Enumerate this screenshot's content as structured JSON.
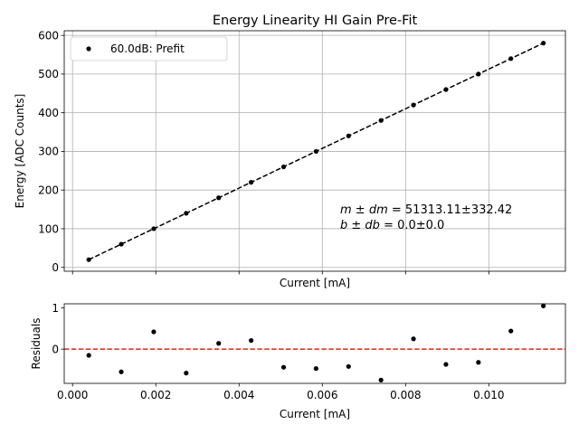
{
  "chart_data": [
    {
      "type": "scatter",
      "title": "Energy Linearity HI Gain Pre-Fit",
      "xlabel": "Current [mA]",
      "ylabel": "Energy [ADC Counts]",
      "xlim": [
        -0.0002,
        0.01184
      ],
      "ylim": [
        -10,
        612
      ],
      "yticks": [
        0,
        100,
        200,
        300,
        400,
        500,
        600
      ],
      "xticks": [
        0.0,
        0.002,
        0.004,
        0.006,
        0.008,
        0.01
      ],
      "show_xtick_labels": false,
      "grid": true,
      "legend": {
        "location": "upper-left",
        "entries": [
          "60.0dB: Prefit"
        ]
      },
      "series": [
        {
          "name": "60.0dB: Prefit",
          "marker": "dot",
          "color": "#000000",
          "x": [
            0.00039,
            0.00117,
            0.00195,
            0.00273,
            0.00351,
            0.00429,
            0.00507,
            0.00585,
            0.00663,
            0.00741,
            0.00819,
            0.00897,
            0.00975,
            0.01053,
            0.01131
          ],
          "y": [
            20,
            60,
            100,
            140,
            180,
            220,
            260,
            300,
            340,
            380,
            420,
            460,
            500,
            540,
            580
          ]
        }
      ],
      "fit_line": {
        "style": "dashed",
        "color": "#000000",
        "x": [
          0.00039,
          0.01131
        ],
        "y": [
          20,
          580
        ]
      },
      "annotation": {
        "line1_math": "m ± dm",
        "line1_value": " = 51313.11±332.42",
        "line2_math": "b ± db",
        "line2_value": " = 0.0±0.0"
      }
    },
    {
      "type": "scatter",
      "title": "",
      "xlabel": "Current [mA]",
      "ylabel": "Residuals",
      "xlim": [
        -0.0002,
        0.01184
      ],
      "ylim": [
        -0.83,
        1.1
      ],
      "yticks": [
        0,
        1
      ],
      "xticks": [
        0.0,
        0.002,
        0.004,
        0.006,
        0.008,
        0.01
      ],
      "xtick_labels": [
        "0.000",
        "0.002",
        "0.004",
        "0.006",
        "0.008",
        "0.010"
      ],
      "grid": false,
      "reference_line": {
        "y": 0,
        "style": "dashed",
        "color": "#e8231b"
      },
      "series": [
        {
          "name": "Residuals",
          "marker": "dot",
          "color": "#000000",
          "x": [
            0.00039,
            0.00117,
            0.00195,
            0.00273,
            0.00351,
            0.00429,
            0.00507,
            0.00585,
            0.00663,
            0.00741,
            0.00819,
            0.00897,
            0.00975,
            0.01053,
            0.01131
          ],
          "y": [
            -0.15,
            -0.55,
            0.42,
            -0.58,
            0.14,
            0.21,
            -0.44,
            -0.47,
            -0.42,
            -0.75,
            0.25,
            -0.37,
            -0.32,
            0.44,
            1.05
          ]
        }
      ]
    }
  ]
}
